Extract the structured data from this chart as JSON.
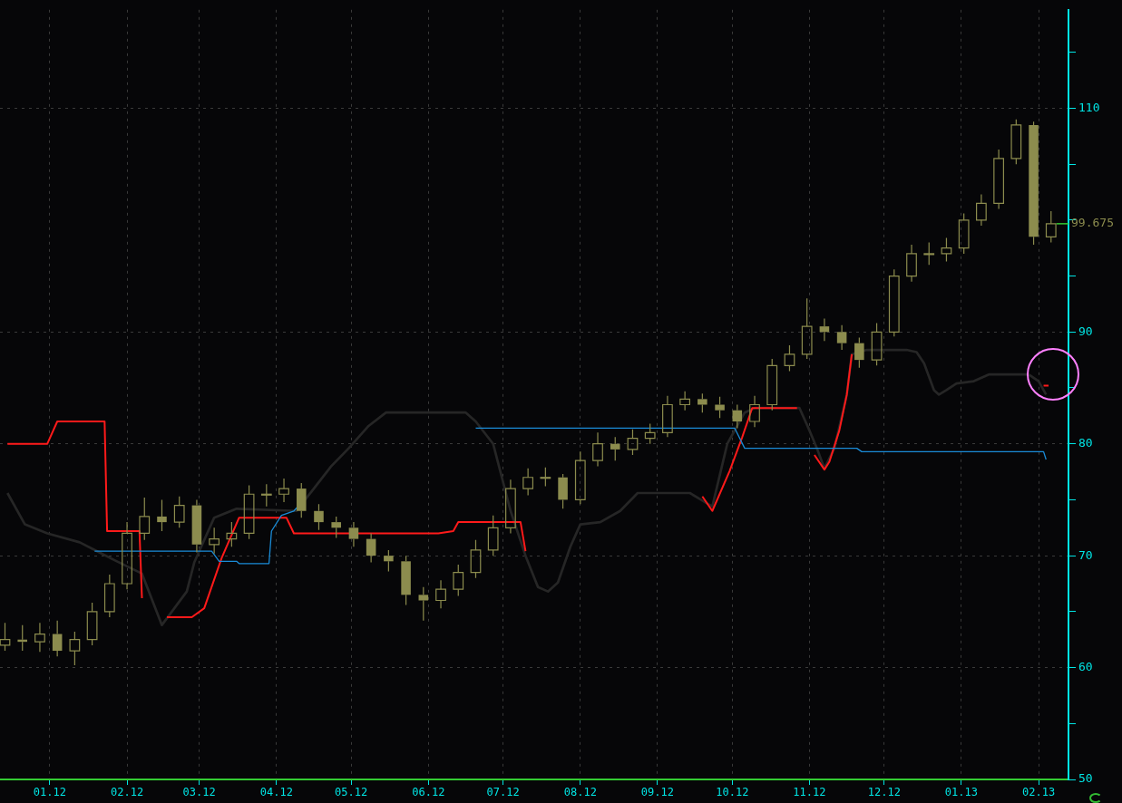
{
  "chart_data": {
    "type": "candlestick",
    "color": "#8c8c4e",
    "x": [
      "2011-12-14",
      "2011-12-21",
      "2011-12-28",
      "2012-01-04",
      "2012-01-11",
      "2012-01-18",
      "2012-01-25",
      "2012-02-01",
      "2012-02-08",
      "2012-02-15",
      "2012-02-22",
      "2012-02-29",
      "2012-03-07",
      "2012-03-14",
      "2012-03-21",
      "2012-03-28",
      "2012-04-04",
      "2012-04-11",
      "2012-04-18",
      "2012-04-25",
      "2012-05-02",
      "2012-05-09",
      "2012-05-16",
      "2012-05-23",
      "2012-05-30",
      "2012-06-06",
      "2012-06-13",
      "2012-06-20",
      "2012-06-27",
      "2012-07-04",
      "2012-07-11",
      "2012-07-18",
      "2012-07-25",
      "2012-08-01",
      "2012-08-08",
      "2012-08-15",
      "2012-08-22",
      "2012-08-29",
      "2012-09-05",
      "2012-09-12",
      "2012-09-19",
      "2012-09-26",
      "2012-10-03",
      "2012-10-10",
      "2012-10-17",
      "2012-10-24",
      "2012-10-31",
      "2012-11-07",
      "2012-11-14",
      "2012-11-21",
      "2012-11-28",
      "2012-12-05",
      "2012-12-12",
      "2012-12-19",
      "2012-12-26",
      "2013-01-02",
      "2013-01-09",
      "2013-01-16",
      "2013-01-23",
      "2013-01-30",
      "2013-02-06"
    ],
    "ohlc": [
      [
        62,
        64,
        61.5,
        62.5
      ],
      [
        62.5,
        63.8,
        61.5,
        62.3
      ],
      [
        62.3,
        64,
        61.4,
        63
      ],
      [
        63,
        64.2,
        61,
        61.5
      ],
      [
        61.5,
        63.2,
        60.2,
        62.5
      ],
      [
        62.5,
        65.8,
        62,
        65
      ],
      [
        65,
        68.3,
        64.5,
        67.5
      ],
      [
        67.5,
        73,
        67,
        72
      ],
      [
        72,
        75.2,
        71.4,
        73.5
      ],
      [
        73.5,
        75,
        72.2,
        73
      ],
      [
        73,
        75.3,
        72.5,
        74.5
      ],
      [
        74.5,
        75,
        70.3,
        71
      ],
      [
        71,
        72.5,
        70.2,
        71.5
      ],
      [
        71.5,
        73,
        70.8,
        72
      ],
      [
        72,
        76.3,
        71.5,
        75.5
      ],
      [
        75.5,
        76.4,
        74.4,
        75.5
      ],
      [
        75.5,
        76.9,
        74.8,
        76
      ],
      [
        76,
        76.5,
        73.4,
        74
      ],
      [
        74,
        74.6,
        72.3,
        73
      ],
      [
        73,
        73.5,
        71.6,
        72.5
      ],
      [
        72.5,
        73,
        70.8,
        71.5
      ],
      [
        71.5,
        72,
        69.4,
        70
      ],
      [
        70,
        70.5,
        68.6,
        69.5
      ],
      [
        69.5,
        70,
        65.6,
        66.5
      ],
      [
        66.5,
        67.2,
        64.2,
        66
      ],
      [
        66,
        67.8,
        65.3,
        67
      ],
      [
        67,
        69.2,
        66.4,
        68.5
      ],
      [
        68.5,
        71.4,
        68,
        70.5
      ],
      [
        70.5,
        73.6,
        70,
        72.5
      ],
      [
        72.5,
        76.8,
        72,
        76
      ],
      [
        76,
        77.8,
        75.4,
        77
      ],
      [
        77,
        77.9,
        76.2,
        77
      ],
      [
        77,
        77.3,
        74.2,
        75
      ],
      [
        75,
        79.3,
        74.6,
        78.5
      ],
      [
        78.5,
        81,
        78,
        80
      ],
      [
        80,
        80.6,
        78.5,
        79.5
      ],
      [
        79.5,
        81.3,
        79,
        80.5
      ],
      [
        80.5,
        81.8,
        80,
        81
      ],
      [
        81,
        84.3,
        80.6,
        83.5
      ],
      [
        83.5,
        84.7,
        83,
        84
      ],
      [
        84,
        84.5,
        82.8,
        83.5
      ],
      [
        83.5,
        84.2,
        82.3,
        83
      ],
      [
        83,
        83.5,
        81.4,
        82
      ],
      [
        82,
        84.3,
        81.5,
        83.5
      ],
      [
        83.5,
        87.6,
        83,
        87
      ],
      [
        87,
        88.8,
        86.5,
        88
      ],
      [
        88,
        93,
        87.6,
        90.5
      ],
      [
        90.5,
        91.2,
        89.2,
        90
      ],
      [
        90,
        90.6,
        88.4,
        89
      ],
      [
        89,
        89.5,
        86.8,
        87.5
      ],
      [
        87.5,
        90.8,
        87,
        90
      ],
      [
        90,
        95.6,
        89.6,
        95
      ],
      [
        95,
        97.8,
        94.5,
        97
      ],
      [
        97,
        98,
        96,
        97
      ],
      [
        97,
        98.4,
        96.3,
        97.5
      ],
      [
        97.5,
        100.6,
        97,
        100
      ],
      [
        100,
        102.3,
        99.5,
        101.5
      ],
      [
        101.5,
        106.3,
        101,
        105.5
      ],
      [
        105.5,
        109,
        105,
        108.5
      ],
      [
        108.5,
        108.8,
        97.8,
        98.5
      ],
      [
        98.5,
        100.8,
        98,
        99.675
      ]
    ],
    "series": [
      {
        "type": "line",
        "color": "#262626",
        "x": [
          "2011-12-15",
          "2011-12-22",
          "2011-12-31",
          "2012-01-13",
          "2012-01-20",
          "2012-01-27",
          "2012-02-07",
          "2012-02-15",
          "2012-02-20",
          "2012-02-25",
          "2012-02-28",
          "2012-03-07",
          "2012-03-16",
          "2012-04-09",
          "2012-04-16",
          "2012-04-23",
          "2012-04-30",
          "2012-05-08",
          "2012-05-15",
          "2012-06-16",
          "2012-06-20",
          "2012-06-27",
          "2012-07-04",
          "2012-07-10",
          "2012-07-15",
          "2012-07-19",
          "2012-07-23",
          "2012-07-28",
          "2012-08-01",
          "2012-08-09",
          "2012-08-17",
          "2012-08-24",
          "2012-09-14",
          "2012-09-23",
          "2012-09-29",
          "2012-10-06",
          "2012-10-10",
          "2012-10-28",
          "2012-11-01",
          "2012-11-04",
          "2012-11-07",
          "2012-11-11",
          "2012-11-16",
          "2012-11-18",
          "2012-11-24",
          "2012-12-10",
          "2012-12-14",
          "2012-12-17",
          "2012-12-21",
          "2012-12-23",
          "2012-12-26",
          "2012-12-30",
          "2013-01-06",
          "2013-01-12",
          "2013-01-28",
          "2013-02-01",
          "2013-02-04"
        ],
        "values": [
          75.6,
          72.8,
          72,
          71.2,
          70.4,
          69.6,
          68.4,
          63.8,
          65.3,
          66.8,
          69.4,
          73.4,
          74.2,
          74,
          76,
          78,
          79.6,
          81.6,
          82.8,
          82.8,
          82,
          80,
          74,
          70,
          67.2,
          66.8,
          67.6,
          70.8,
          72.8,
          73,
          74,
          75.6,
          75.6,
          74.4,
          80,
          82.8,
          83.2,
          83.2,
          81.2,
          79.6,
          77.8,
          79.6,
          84.4,
          88,
          88.4,
          88.4,
          88.2,
          87.2,
          84.8,
          84.4,
          84.8,
          85.4,
          85.6,
          86.2,
          86.2,
          85.6,
          84.4
        ]
      },
      {
        "type": "line",
        "color": "#ff1a1a",
        "x": [
          "2011-12-15",
          "2011-12-31",
          "2012-01-04",
          "2012-01-23",
          "2012-01-24",
          "2012-02-06",
          "2012-02-07",
          "2012-02-12",
          "2012-02-17",
          "2012-02-27",
          "2012-03-03",
          "2012-03-10",
          "2012-03-17",
          "2012-04-05",
          "2012-04-08",
          "2012-06-05",
          "2012-06-11",
          "2012-06-13",
          "2012-07-08",
          "2012-07-10",
          "2012-08-20",
          "2012-09-19",
          "2012-09-23",
          "2012-09-30",
          "2012-10-05",
          "2012-10-09",
          "2012-10-27",
          "2012-10-31",
          "2012-11-03",
          "2012-11-07",
          "2012-11-09",
          "2012-11-13",
          "2012-11-16",
          "2012-11-18",
          "2012-12-20",
          "2013-02-03",
          "2013-02-05"
        ],
        "values": [
          80,
          80,
          82,
          82,
          72.2,
          72.2,
          66.2,
          null,
          64.5,
          64.5,
          65.3,
          69.8,
          73.4,
          73.4,
          72,
          72,
          72.2,
          73,
          73,
          70.4,
          null,
          75.3,
          74,
          77.6,
          80.6,
          83.2,
          83.2,
          null,
          79,
          77.7,
          78.4,
          81.2,
          84.4,
          88,
          null,
          85.2,
          85.2
        ]
      },
      {
        "type": "line",
        "color": "#1a8cd8",
        "x": [
          "2012-01-19",
          "2012-03-06",
          "2012-03-09",
          "2012-03-16",
          "2012-03-17",
          "2012-03-29",
          "2012-03-30",
          "2012-04-03",
          "2012-04-08",
          "2012-04-10",
          "2012-05-15",
          "2012-06-20",
          "2012-10-02",
          "2012-10-06",
          "2012-11-20",
          "2012-11-22",
          "2013-02-03",
          "2013-02-04"
        ],
        "values": [
          70.4,
          70.4,
          69.5,
          69.5,
          69.3,
          69.3,
          72.2,
          73.6,
          74,
          74.5,
          null,
          81.4,
          81.4,
          79.6,
          79.6,
          79.3,
          79.3,
          78.6
        ]
      }
    ],
    "marker": "none",
    "line_style": "solid",
    "grid": true,
    "xlim": [
      "2011-12-12",
      "2013-02-13"
    ],
    "xticks": [
      {
        "value": "2012-01-01",
        "label": "01.12"
      },
      {
        "value": "2012-02-01",
        "label": "02.12"
      },
      {
        "value": "2012-03-01",
        "label": "03.12"
      },
      {
        "value": "2012-04-01",
        "label": "04.12"
      },
      {
        "value": "2012-05-01",
        "label": "05.12"
      },
      {
        "value": "2012-06-01",
        "label": "06.12"
      },
      {
        "value": "2012-07-01",
        "label": "07.12"
      },
      {
        "value": "2012-08-01",
        "label": "08.12"
      },
      {
        "value": "2012-09-01",
        "label": "09.12"
      },
      {
        "value": "2012-10-01",
        "label": "10.12"
      },
      {
        "value": "2012-11-01",
        "label": "11.12"
      },
      {
        "value": "2012-12-01",
        "label": "12.12"
      },
      {
        "value": "2013-01-01",
        "label": "01.13"
      },
      {
        "value": "2013-02-01",
        "label": "02.13"
      }
    ],
    "ylim": [
      50,
      118.8
    ],
    "yticks": [
      50,
      {
        "value": 55,
        "label": null
      },
      60,
      {
        "value": 65,
        "label": null
      },
      70,
      {
        "value": 75,
        "label": null
      },
      80,
      {
        "value": 85,
        "label": null
      },
      90,
      {
        "value": 95,
        "label": null
      },
      {
        "value": 100,
        "label": null
      },
      {
        "value": 105,
        "label": null
      },
      110,
      {
        "value": 115,
        "label": null
      }
    ],
    "annotations": [
      {
        "text": "99.675",
        "x": "2013-02-06",
        "y": 99.675
      }
    ]
  }
}
